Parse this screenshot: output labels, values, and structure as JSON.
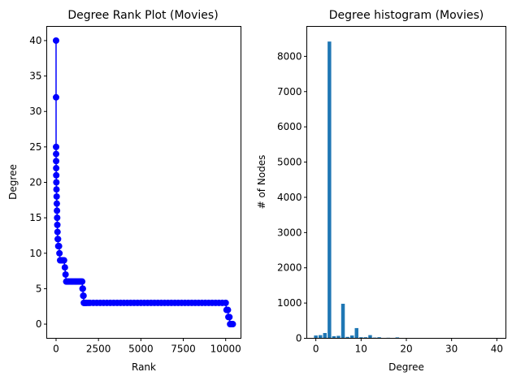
{
  "figure": {
    "background": "#ffffff"
  },
  "chart_data": [
    {
      "type": "line",
      "title": "Degree Rank Plot (Movies)",
      "xlabel": "Rank",
      "ylabel": "Degree",
      "xlim": [
        -550,
        10900
      ],
      "ylim": [
        -2,
        42
      ],
      "xticks": [
        0,
        2500,
        5000,
        7500,
        10000
      ],
      "yticks": [
        0,
        5,
        10,
        15,
        20,
        25,
        30,
        35,
        40
      ],
      "xtick_labels": [
        "0",
        "2500",
        "5000",
        "7500",
        "10000"
      ],
      "ytick_labels": [
        "0",
        "5",
        "10",
        "15",
        "20",
        "25",
        "30",
        "35",
        "40"
      ],
      "marker": "circle",
      "color": "#0000ff",
      "grid": false,
      "series": [
        {
          "x": [
            0,
            1,
            2,
            3,
            5,
            8,
            12,
            18,
            25,
            35,
            45,
            55,
            65,
            75,
            85,
            100,
            115,
            130,
            150,
            175,
            200,
            240,
            280,
            330,
            380,
            420,
            470,
            520,
            560,
            600,
            650,
            700,
            760,
            820,
            880,
            940,
            1000,
            1060,
            1120,
            1180,
            1240,
            1300,
            1360,
            1420,
            1480,
            1540,
            1560,
            1580,
            1600,
            1620,
            1640,
            1660,
            1700,
            1750,
            1800,
            1900,
            2000,
            2200,
            2400,
            2600,
            2800,
            3000,
            3200,
            3400,
            3600,
            3800,
            4000,
            4200,
            4400,
            4600,
            4800,
            5000,
            5200,
            5400,
            5600,
            5800,
            6000,
            6200,
            6400,
            6600,
            6800,
            7000,
            7200,
            7400,
            7600,
            7800,
            8000,
            8200,
            8400,
            8600,
            8800,
            9000,
            9200,
            9400,
            9600,
            9800,
            10000,
            10050,
            10100,
            10130,
            10160,
            10190,
            10220,
            10260,
            10300,
            10340,
            10380,
            10420
          ],
          "y": [
            40,
            32,
            25,
            24,
            23,
            22,
            21,
            20,
            19,
            18,
            17,
            16,
            15,
            14,
            13,
            12,
            12,
            11,
            11,
            11,
            10,
            9,
            9,
            9,
            9,
            9,
            9,
            8,
            7,
            6,
            6,
            6,
            6,
            6,
            6,
            6,
            6,
            6,
            6,
            6,
            6,
            6,
            6,
            6,
            6,
            6,
            5,
            5,
            4,
            4,
            3,
            3,
            3,
            3,
            3,
            3,
            3,
            3,
            3,
            3,
            3,
            3,
            3,
            3,
            3,
            3,
            3,
            3,
            3,
            3,
            3,
            3,
            3,
            3,
            3,
            3,
            3,
            3,
            3,
            3,
            3,
            3,
            3,
            3,
            3,
            3,
            3,
            3,
            3,
            3,
            3,
            3,
            3,
            3,
            3,
            3,
            3,
            2,
            2,
            2,
            1,
            1,
            1,
            0,
            0,
            0,
            0,
            0
          ]
        }
      ]
    },
    {
      "type": "bar",
      "title": "Degree histogram (Movies)",
      "xlabel": "Degree",
      "ylabel": "# of Nodes",
      "xlim": [
        -2,
        42
      ],
      "ylim": [
        0,
        8850
      ],
      "xticks": [
        0,
        10,
        20,
        30,
        40
      ],
      "yticks": [
        0,
        1000,
        2000,
        3000,
        4000,
        5000,
        6000,
        7000,
        8000
      ],
      "xtick_labels": [
        "0",
        "10",
        "20",
        "30",
        "40"
      ],
      "ytick_labels": [
        "0",
        "1000",
        "2000",
        "3000",
        "4000",
        "5000",
        "6000",
        "7000",
        "8000"
      ],
      "color": "#1f77b4",
      "bar_width": 0.8,
      "grid": false,
      "categories": [
        0,
        1,
        2,
        3,
        4,
        5,
        6,
        7,
        8,
        9,
        10,
        11,
        12,
        13,
        14,
        15,
        16,
        17,
        18,
        19,
        20,
        21,
        22,
        23,
        24,
        25,
        32,
        40
      ],
      "values": [
        80,
        90,
        150,
        8420,
        60,
        70,
        980,
        40,
        80,
        290,
        30,
        30,
        90,
        20,
        30,
        10,
        15,
        8,
        25,
        5,
        8,
        4,
        4,
        4,
        4,
        2,
        1,
        1
      ]
    }
  ]
}
